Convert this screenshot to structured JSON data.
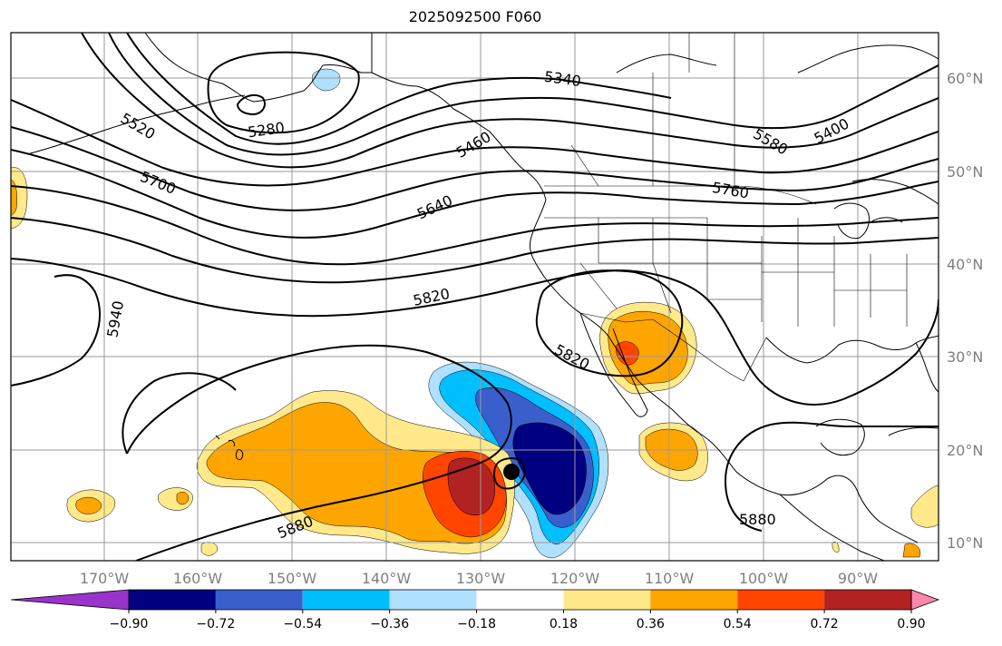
{
  "title": "2025092500 F060",
  "colors": {
    "neg_090_plus": "#9933cc",
    "neg_072": "#000080",
    "neg_054": "#3a5fcd",
    "neg_036": "#00bfff",
    "neg_018": "#b0e0ff",
    "neutral": "#ffffff",
    "pos_018": "#ffe98a",
    "pos_036": "#ffa500",
    "pos_054": "#ff4500",
    "pos_072": "#b22222",
    "pos_090_plus": "#ff88aa",
    "contour": "#000000",
    "grid": "#9a9a9a",
    "coast": "#000000"
  },
  "lon_labels": [
    "170°W",
    "160°W",
    "150°W",
    "140°W",
    "130°W",
    "120°W",
    "110°W",
    "100°W",
    "90°W"
  ],
  "lat_labels": [
    "60°N",
    "50°N",
    "40°N",
    "30°N",
    "20°N",
    "10°N"
  ],
  "colorbar": {
    "labels": [
      "−0.90",
      "−0.72",
      "−0.54",
      "−0.36",
      "−0.18",
      "0.18",
      "0.36",
      "0.54",
      "0.72",
      "0.90"
    ],
    "colors": [
      "#000080",
      "#3a5fcd",
      "#00bfff",
      "#b0e0ff",
      "#ffffff",
      "#ffe98a",
      "#ffa500",
      "#ff4500",
      "#b22222"
    ],
    "extend_low": "#9933cc",
    "extend_high": "#ff88aa"
  },
  "contour_labels": [
    "5280",
    "5340",
    "5400",
    "5460",
    "5520",
    "5580",
    "5640",
    "5700",
    "5760",
    "5820",
    "5820",
    "5880",
    "5880",
    "5940"
  ],
  "marker": "storm-center-dot"
}
